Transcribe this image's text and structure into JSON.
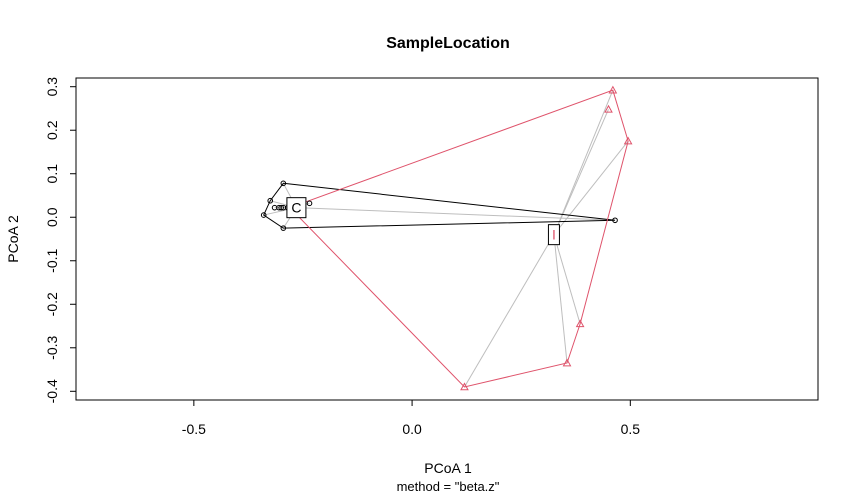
{
  "chart_data": {
    "type": "scatter",
    "title": "SampleLocation",
    "xlabel": "PCoA 1",
    "ylabel": "PCoA 2",
    "subtitle": "method = \"beta.z\"",
    "xlim": [
      -0.77,
      0.93
    ],
    "ylim": [
      -0.42,
      0.32
    ],
    "xticks": [
      -0.5,
      0.0,
      0.5
    ],
    "xtick_labels": [
      "-0.5",
      "0.0",
      "0.5"
    ],
    "yticks": [
      -0.4,
      -0.3,
      -0.2,
      -0.1,
      0.0,
      0.1,
      0.2,
      0.3
    ],
    "ytick_labels": [
      "-0.4",
      "-0.3",
      "-0.2",
      "-0.1",
      "0.0",
      "0.1",
      "0.2",
      "0.3"
    ],
    "grid": false,
    "legend": "none",
    "series": [
      {
        "name": "C",
        "marker": "circle",
        "color": "#000000",
        "centroid": [
          -0.265,
          0.022
        ],
        "points": [
          [
            -0.295,
            0.078
          ],
          [
            -0.325,
            0.038
          ],
          [
            -0.34,
            0.005
          ],
          [
            -0.295,
            -0.025
          ],
          [
            -0.315,
            0.022
          ],
          [
            -0.305,
            0.022
          ],
          [
            -0.295,
            0.022
          ],
          [
            -0.285,
            0.022
          ],
          [
            -0.3,
            0.022
          ],
          [
            -0.235,
            0.032
          ],
          [
            0.465,
            -0.007
          ]
        ],
        "hull": [
          [
            -0.295,
            0.078
          ],
          [
            0.465,
            -0.007
          ],
          [
            -0.295,
            -0.025
          ],
          [
            -0.34,
            0.005
          ],
          [
            -0.325,
            0.038
          ]
        ]
      },
      {
        "name": "I",
        "marker": "triangle",
        "color": "#DF536B",
        "centroid": [
          0.325,
          -0.04
        ],
        "points": [
          [
            0.46,
            0.292
          ],
          [
            0.45,
            0.248
          ],
          [
            0.495,
            0.175
          ],
          [
            0.385,
            -0.245
          ],
          [
            0.355,
            -0.335
          ],
          [
            0.12,
            -0.39
          ]
        ],
        "hull": [
          [
            0.46,
            0.292
          ],
          [
            0.495,
            0.175
          ],
          [
            0.385,
            -0.245
          ],
          [
            0.355,
            -0.335
          ],
          [
            0.12,
            -0.39
          ],
          [
            -0.28,
            0.022
          ]
        ]
      }
    ],
    "label_box_color": "#000000",
    "spoke_color": "#BEBEBE"
  }
}
